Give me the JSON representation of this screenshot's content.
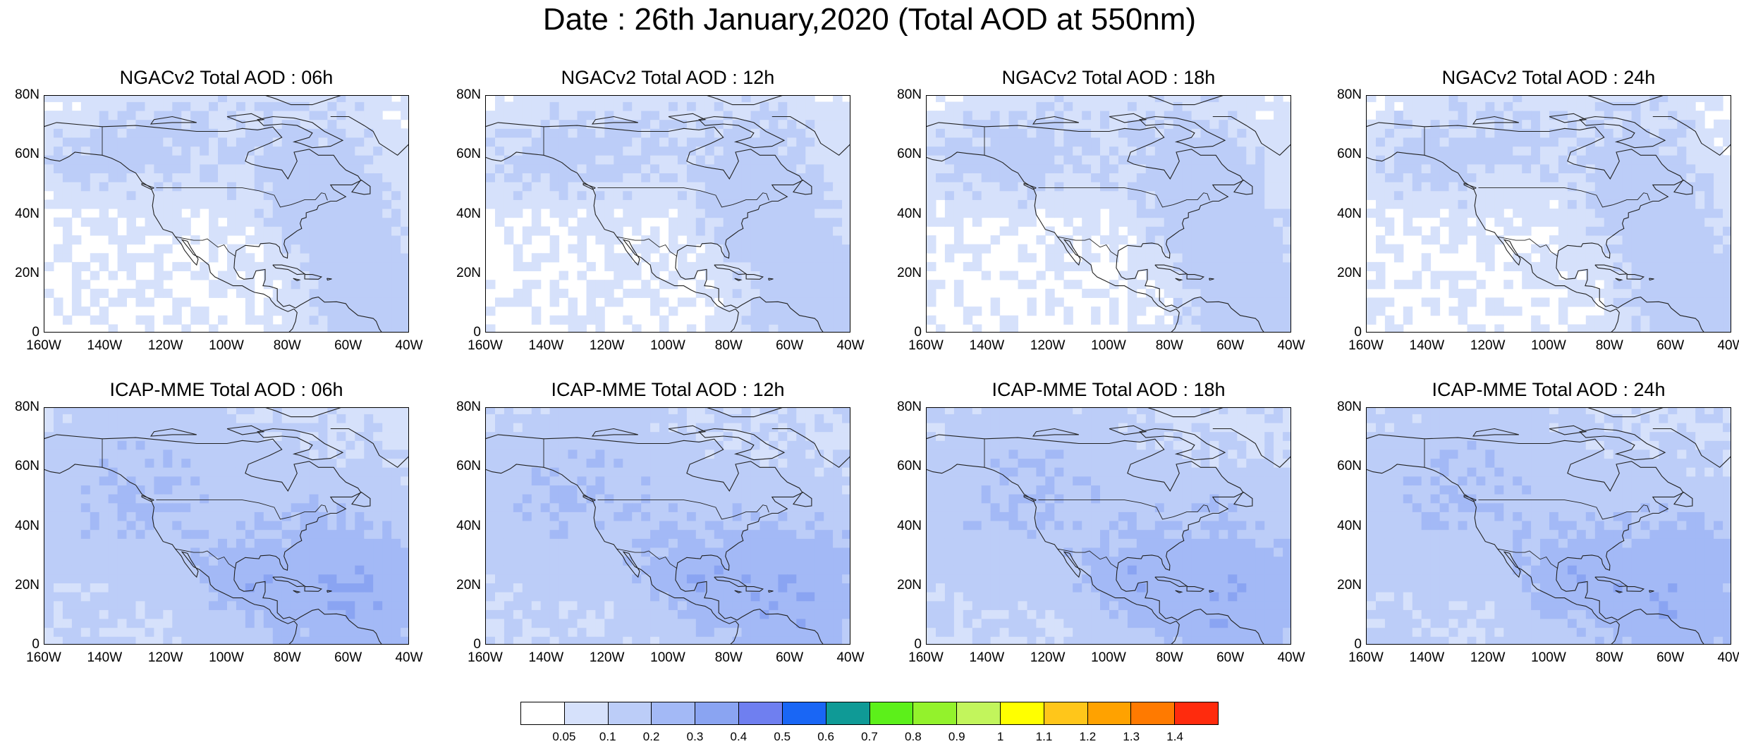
{
  "title": "Date : 26th January,2020 (Total AOD at 550nm)",
  "panels": [
    {
      "title": "NGACv2 Total AOD : 06h",
      "model": "NGACv2",
      "hour": "06h"
    },
    {
      "title": "NGACv2 Total AOD : 12h",
      "model": "NGACv2",
      "hour": "12h"
    },
    {
      "title": "NGACv2 Total AOD : 18h",
      "model": "NGACv2",
      "hour": "18h"
    },
    {
      "title": "NGACv2 Total AOD : 24h",
      "model": "NGACv2",
      "hour": "24h"
    },
    {
      "title": "ICAP-MME Total AOD : 06h",
      "model": "ICAP-MME",
      "hour": "06h"
    },
    {
      "title": "ICAP-MME Total AOD : 12h",
      "model": "ICAP-MME",
      "hour": "12h"
    },
    {
      "title": "ICAP-MME Total AOD : 18h",
      "model": "ICAP-MME",
      "hour": "18h"
    },
    {
      "title": "ICAP-MME Total AOD : 24h",
      "model": "ICAP-MME",
      "hour": "24h"
    }
  ],
  "lat_labels": [
    "80N",
    "60N",
    "40N",
    "20N",
    "0"
  ],
  "lon_labels": [
    "160W",
    "140W",
    "120W",
    "100W",
    "80W",
    "60W",
    "40W"
  ],
  "colorbar": {
    "labels": [
      "0.05",
      "0.1",
      "0.2",
      "0.3",
      "0.4",
      "0.5",
      "0.6",
      "0.7",
      "0.8",
      "0.9",
      "1",
      "1.1",
      "1.2",
      "1.3",
      "1.4"
    ],
    "colors": [
      "#ffffff",
      "#d6e1fb",
      "#bccdf8",
      "#a3b9f6",
      "#8aa4f2",
      "#6f7ff0",
      "#1966f5",
      "#0f9a96",
      "#5cf01a",
      "#93f22c",
      "#c2f55c",
      "#ffff00",
      "#ffc61a",
      "#ffa200",
      "#ff7a00",
      "#ff2b0d"
    ]
  }
}
